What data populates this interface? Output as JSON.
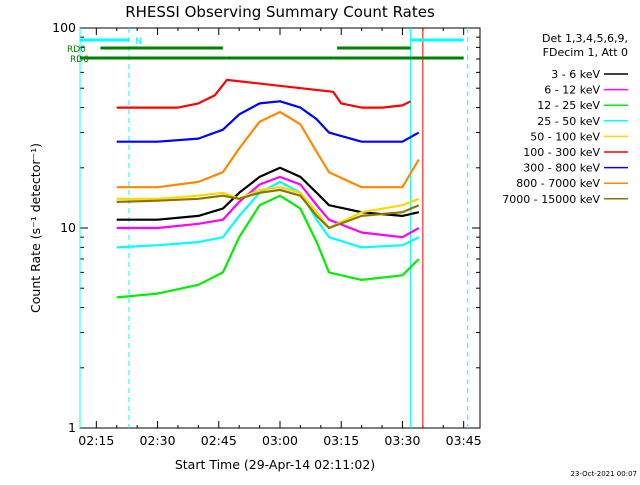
{
  "chart_data": {
    "type": "line",
    "title": "RHESSI Observing Summary Count Rates",
    "xlabel": "Start Time (29-Apr-14 02:11:02)",
    "ylabel": "Count Rate (s⁻¹ detector⁻¹)",
    "yscale": "log",
    "ylim": [
      1,
      100
    ],
    "xlim": [
      "02:11",
      "03:49"
    ],
    "x_ticks": [
      "02:15",
      "02:30",
      "02:45",
      "03:00",
      "03:15",
      "03:30",
      "03:45"
    ],
    "y_ticks": [
      "1",
      "10",
      "100"
    ],
    "footer_date": "23-Oct-2021 00:07",
    "legend": {
      "header": [
        "Det 1,3,4,5,6,9,",
        "FDecim 1, Att 0"
      ],
      "position": "right"
    },
    "series": [
      {
        "name": "3 - 6 keV",
        "color": "#000000",
        "points": [
          [
            "02:20",
            11
          ],
          [
            "02:30",
            11
          ],
          [
            "02:40",
            11.5
          ],
          [
            "02:46",
            12.5
          ],
          [
            "02:50",
            15
          ],
          [
            "02:55",
            18
          ],
          [
            "03:00",
            20
          ],
          [
            "03:05",
            18
          ],
          [
            "03:09",
            15
          ],
          [
            "03:12",
            13
          ],
          [
            "03:20",
            12
          ],
          [
            "03:30",
            11.5
          ],
          [
            "03:34",
            12
          ]
        ]
      },
      {
        "name": "6 - 12 keV",
        "color": "#ff00ff",
        "points": [
          [
            "02:20",
            10
          ],
          [
            "02:30",
            10
          ],
          [
            "02:40",
            10.5
          ],
          [
            "02:46",
            11
          ],
          [
            "02:50",
            13.5
          ],
          [
            "02:55",
            16.5
          ],
          [
            "03:00",
            18
          ],
          [
            "03:05",
            16.5
          ],
          [
            "03:09",
            13
          ],
          [
            "03:12",
            11
          ],
          [
            "03:20",
            9.5
          ],
          [
            "03:30",
            9
          ],
          [
            "03:34",
            10
          ]
        ]
      },
      {
        "name": "12 - 25 keV",
        "color": "#00ee00",
        "points": [
          [
            "02:20",
            4.5
          ],
          [
            "02:30",
            4.7
          ],
          [
            "02:40",
            5.2
          ],
          [
            "02:46",
            6
          ],
          [
            "02:50",
            9
          ],
          [
            "02:55",
            13
          ],
          [
            "03:00",
            14.5
          ],
          [
            "03:05",
            12.5
          ],
          [
            "03:09",
            8.5
          ],
          [
            "03:12",
            6
          ],
          [
            "03:20",
            5.5
          ],
          [
            "03:30",
            5.8
          ],
          [
            "03:34",
            7
          ]
        ]
      },
      {
        "name": "25 - 50 keV",
        "color": "#00ffff",
        "points": [
          [
            "02:20",
            8
          ],
          [
            "02:30",
            8.2
          ],
          [
            "02:40",
            8.5
          ],
          [
            "02:46",
            9
          ],
          [
            "02:50",
            11.5
          ],
          [
            "02:55",
            15
          ],
          [
            "03:00",
            17
          ],
          [
            "03:05",
            15
          ],
          [
            "03:09",
            11
          ],
          [
            "03:12",
            9
          ],
          [
            "03:20",
            8
          ],
          [
            "03:30",
            8.2
          ],
          [
            "03:34",
            9
          ]
        ]
      },
      {
        "name": "50 - 100 keV",
        "color": "#ffd700",
        "points": [
          [
            "02:20",
            14
          ],
          [
            "02:30",
            14
          ],
          [
            "02:40",
            14.5
          ],
          [
            "02:46",
            15
          ],
          [
            "02:50",
            14
          ],
          [
            "02:55",
            15.5
          ],
          [
            "03:00",
            16
          ],
          [
            "03:05",
            15
          ],
          [
            "03:09",
            12
          ],
          [
            "03:12",
            10
          ],
          [
            "03:20",
            12
          ],
          [
            "03:30",
            13
          ],
          [
            "03:34",
            14
          ]
        ]
      },
      {
        "name": "100 - 300 keV",
        "color": "#ff0000",
        "points": [
          [
            "02:20",
            40
          ],
          [
            "02:30",
            40
          ],
          [
            "02:35",
            40
          ],
          [
            "02:40",
            42
          ],
          [
            "02:44",
            46
          ],
          [
            "02:47",
            55
          ],
          [
            "03:13",
            48
          ],
          [
            "03:15",
            42
          ],
          [
            "03:20",
            40
          ],
          [
            "03:25",
            40
          ],
          [
            "03:30",
            41
          ],
          [
            "03:32",
            43
          ]
        ]
      },
      {
        "name": "300 - 800 keV",
        "color": "#0000ff",
        "points": [
          [
            "02:20",
            27
          ],
          [
            "02:30",
            27
          ],
          [
            "02:40",
            28
          ],
          [
            "02:46",
            31
          ],
          [
            "02:50",
            37
          ],
          [
            "02:55",
            42
          ],
          [
            "03:00",
            43
          ],
          [
            "03:05",
            40
          ],
          [
            "03:09",
            35
          ],
          [
            "03:12",
            30
          ],
          [
            "03:20",
            27
          ],
          [
            "03:30",
            27
          ],
          [
            "03:34",
            30
          ]
        ]
      },
      {
        "name": "800 - 7000 keV",
        "color": "#ff8800",
        "points": [
          [
            "02:20",
            16
          ],
          [
            "02:30",
            16
          ],
          [
            "02:40",
            17
          ],
          [
            "02:46",
            19
          ],
          [
            "02:50",
            25
          ],
          [
            "02:55",
            34
          ],
          [
            "03:00",
            38
          ],
          [
            "03:05",
            33
          ],
          [
            "03:09",
            24
          ],
          [
            "03:12",
            19
          ],
          [
            "03:20",
            16
          ],
          [
            "03:30",
            16
          ],
          [
            "03:34",
            22
          ]
        ]
      },
      {
        "name": "7000 - 15000 keV",
        "color": "#8b7500",
        "points": [
          [
            "02:20",
            13.5
          ],
          [
            "02:30",
            13.7
          ],
          [
            "02:40",
            14
          ],
          [
            "02:46",
            14.5
          ],
          [
            "02:50",
            14
          ],
          [
            "02:55",
            15
          ],
          [
            "03:00",
            15.5
          ],
          [
            "03:05",
            14.5
          ],
          [
            "03:09",
            11.5
          ],
          [
            "03:12",
            10
          ],
          [
            "03:20",
            11.5
          ],
          [
            "03:30",
            12
          ],
          [
            "03:34",
            13
          ]
        ]
      }
    ],
    "flags": [
      {
        "label": "",
        "color": "#00ffff",
        "segments": [
          [
            "02:11",
            "02:23"
          ],
          [
            "03:32",
            "03:45"
          ]
        ]
      },
      {
        "label": "N",
        "color": "#00ffff",
        "segments": []
      },
      {
        "label": "RD0",
        "color": "#008000",
        "segments": [
          [
            "02:16",
            "02:46"
          ],
          [
            "03:14",
            "03:32"
          ]
        ]
      },
      {
        "label": "RD6",
        "color": "#008000",
        "segments": [
          [
            "02:11",
            "02:47"
          ],
          [
            "02:47",
            "03:13"
          ],
          [
            "03:13",
            "03:45"
          ]
        ]
      }
    ],
    "vlines": [
      {
        "time": "02:11",
        "color": "#00ffff",
        "style": "solid"
      },
      {
        "time": "02:23",
        "color": "#00ffff",
        "style": "dashed"
      },
      {
        "time": "03:32",
        "color": "#00ffff",
        "style": "solid"
      },
      {
        "time": "03:46",
        "color": "#00ffff",
        "style": "dashed"
      },
      {
        "time": "03:35",
        "color": "#ff0000",
        "style": "solid"
      }
    ],
    "grid": false
  }
}
